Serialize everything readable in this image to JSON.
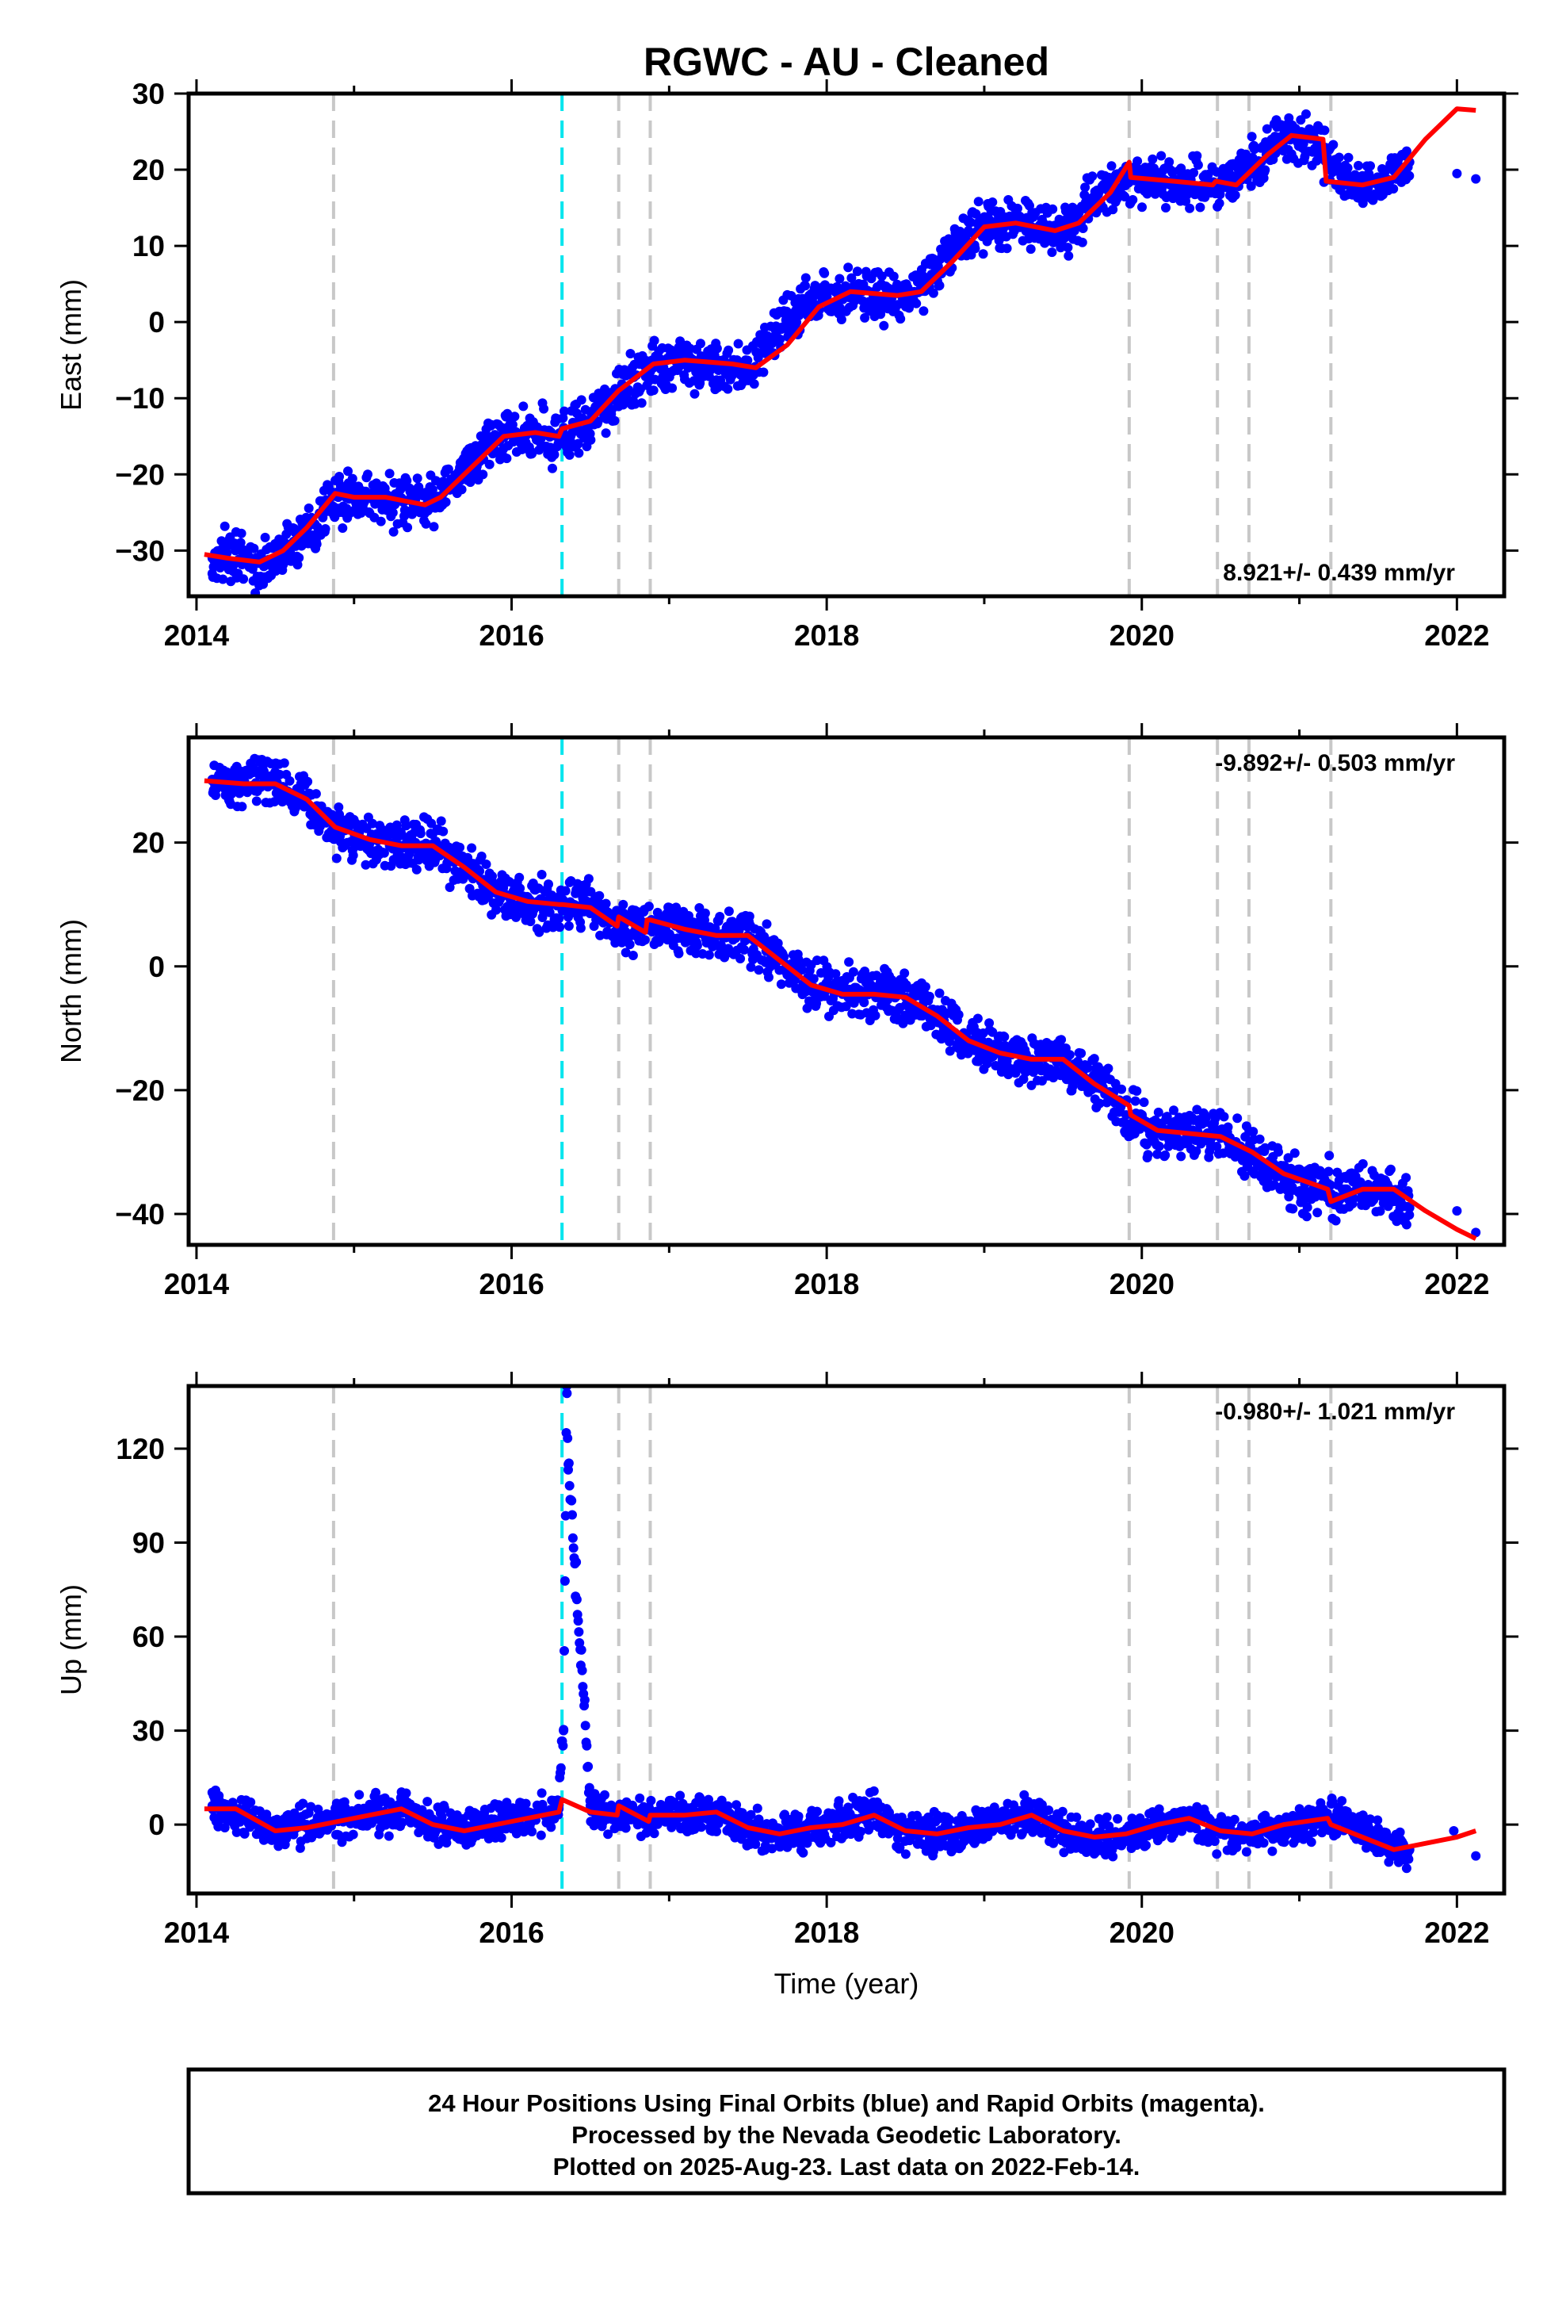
{
  "page": {
    "title": "RGWC  - AU - Cleaned",
    "xlabel": "Time (year)"
  },
  "footer": {
    "line1": "24 Hour Positions Using Final Orbits (blue) and Rapid Orbits (magenta).",
    "line2": "Processed by the Nevada Geodetic Laboratory.",
    "line3": "Plotted on 2025-Aug-23. Last data on 2022-Feb-14."
  },
  "colors": {
    "final_orbits": "#0000ff",
    "model": "#ff0000",
    "antenna_change": "#00e5ee",
    "equipment_change": "#c8c8c8"
  },
  "chart_data": [
    {
      "type": "scatter",
      "component": "East",
      "ylabel": "East (mm)",
      "xlim": [
        2013.95,
        2022.3
      ],
      "ylim": [
        -36,
        30
      ],
      "xticks": [
        2014,
        2016,
        2018,
        2020,
        2022
      ],
      "yticks": [
        30,
        20,
        10,
        0,
        -10,
        -20,
        -30
      ],
      "rate_label": "8.921+/- 0.439 mm/yr",
      "rate_position": "bottom-right",
      "grid": false,
      "series": [
        {
          "role": "daily-positions",
          "x": [
            2014.1,
            2014.3,
            2014.5,
            2014.7,
            2014.9,
            2015.1,
            2015.3,
            2015.5,
            2015.7,
            2015.9,
            2016.1,
            2016.3,
            2016.5,
            2016.7,
            2016.9,
            2017.1,
            2017.3,
            2017.5,
            2017.7,
            2017.9,
            2018.1,
            2018.3,
            2018.5,
            2018.7,
            2018.9,
            2019.1,
            2019.3,
            2019.5,
            2019.7,
            2019.9,
            2020.1,
            2020.3,
            2020.5,
            2020.7,
            2020.9,
            2021.1,
            2021.3,
            2021.5,
            2021.7,
            2022.0,
            2022.12
          ],
          "y": [
            -31,
            -31.5,
            -31.5,
            -28,
            -23,
            -23,
            -23.5,
            -24,
            -19,
            -15,
            -14.5,
            -15,
            -13,
            -9,
            -6,
            -5,
            -5.5,
            -6,
            -1,
            3,
            4,
            3.5,
            3,
            7,
            12,
            13,
            12.5,
            12,
            16,
            19,
            18.5,
            18,
            18,
            21,
            24,
            24,
            18.5,
            18,
            21,
            19.5,
            18.8
          ]
        },
        {
          "role": "model",
          "x": [
            2014.05,
            2014.2,
            2014.4,
            2014.55,
            2014.7,
            2014.88,
            2015.0,
            2015.2,
            2015.45,
            2015.55,
            2015.75,
            2015.95,
            2016.15,
            2016.3,
            2016.32,
            2016.5,
            2016.68,
            2016.9,
            2017.1,
            2017.4,
            2017.55,
            2017.75,
            2017.95,
            2018.15,
            2018.45,
            2018.6,
            2018.8,
            2019.0,
            2019.2,
            2019.45,
            2019.6,
            2019.8,
            2019.92,
            2019.93,
            2020.2,
            2020.45,
            2020.47,
            2020.6,
            2020.65,
            2020.8,
            2020.95,
            2021.15,
            2021.17,
            2021.4,
            2021.6,
            2021.8,
            2022.0,
            2022.12
          ],
          "y": [
            -30.5,
            -31,
            -31.5,
            -30,
            -27,
            -22.5,
            -23,
            -23,
            -24,
            -23,
            -19,
            -15,
            -14.5,
            -15,
            -14,
            -13,
            -9,
            -5.5,
            -5,
            -5.5,
            -6,
            -3,
            2,
            4,
            3.5,
            4,
            8,
            12.5,
            13,
            12,
            13,
            17,
            21,
            19,
            18.5,
            18,
            18.5,
            18,
            19,
            22,
            24.5,
            24,
            18.5,
            18,
            19,
            24,
            28,
            27.8
          ]
        }
      ],
      "events": [
        {
          "x": 2014.87,
          "kind": "equipment"
        },
        {
          "x": 2016.32,
          "kind": "antenna"
        },
        {
          "x": 2016.68,
          "kind": "equipment"
        },
        {
          "x": 2016.88,
          "kind": "equipment"
        },
        {
          "x": 2019.92,
          "kind": "equipment"
        },
        {
          "x": 2020.48,
          "kind": "equipment"
        },
        {
          "x": 2020.68,
          "kind": "equipment"
        },
        {
          "x": 2021.2,
          "kind": "equipment"
        }
      ]
    },
    {
      "type": "scatter",
      "component": "North",
      "ylabel": "North (mm)",
      "xlim": [
        2013.95,
        2022.3
      ],
      "ylim": [
        -45,
        37
      ],
      "xticks": [
        2014,
        2016,
        2018,
        2020,
        2022
      ],
      "yticks": [
        20,
        0,
        -20,
        -40
      ],
      "rate_label": "-9.892+/- 0.503 mm/yr",
      "rate_position": "top-right",
      "grid": false,
      "series": [
        {
          "role": "daily-positions",
          "x": [
            2014.1,
            2014.3,
            2014.5,
            2014.7,
            2014.9,
            2015.1,
            2015.3,
            2015.5,
            2015.7,
            2015.9,
            2016.1,
            2016.3,
            2016.5,
            2016.7,
            2016.9,
            2017.1,
            2017.3,
            2017.5,
            2017.7,
            2017.9,
            2018.1,
            2018.3,
            2018.5,
            2018.7,
            2018.9,
            2019.1,
            2019.3,
            2019.5,
            2019.7,
            2019.9,
            2020.1,
            2020.3,
            2020.5,
            2020.7,
            2020.9,
            2021.1,
            2021.3,
            2021.5,
            2021.7,
            2022.0,
            2022.12
          ],
          "y": [
            30,
            29.5,
            29.5,
            27,
            22,
            20,
            19.5,
            19.5,
            16,
            12,
            10.5,
            10,
            9.5,
            6.5,
            7,
            6,
            5,
            5,
            1,
            -3,
            -4.5,
            -4.5,
            -5,
            -8,
            -12,
            -14,
            -15,
            -15,
            -19,
            -24,
            -27,
            -27,
            -27.5,
            -30,
            -34,
            -36,
            -36,
            -36,
            -39,
            -39.5,
            -43
          ]
        },
        {
          "role": "model",
          "x": [
            2014.05,
            2014.3,
            2014.5,
            2014.7,
            2014.88,
            2015.1,
            2015.3,
            2015.5,
            2015.7,
            2015.9,
            2016.1,
            2016.3,
            2016.32,
            2016.5,
            2016.67,
            2016.68,
            2016.85,
            2016.86,
            2016.88,
            2017.1,
            2017.3,
            2017.5,
            2017.7,
            2017.9,
            2018.1,
            2018.3,
            2018.5,
            2018.7,
            2018.9,
            2019.1,
            2019.3,
            2019.5,
            2019.7,
            2019.92,
            2019.93,
            2020.1,
            2020.3,
            2020.5,
            2020.7,
            2020.9,
            2021.18,
            2021.2,
            2021.4,
            2021.6,
            2021.8,
            2022.0,
            2022.12
          ],
          "y": [
            30,
            29.5,
            29.5,
            27,
            22.5,
            20.5,
            19.5,
            19.5,
            16,
            12,
            10.5,
            10,
            10,
            9.5,
            6.5,
            8,
            5.5,
            7.5,
            7.5,
            6,
            5,
            5,
            1,
            -3,
            -4.5,
            -4.5,
            -5,
            -8,
            -12,
            -14,
            -15,
            -15,
            -19,
            -22.5,
            -24,
            -26.5,
            -27,
            -27.5,
            -30,
            -33.5,
            -36,
            -38,
            -36,
            -36,
            -39.5,
            -42.5,
            -44
          ]
        }
      ],
      "events": [
        {
          "x": 2014.87,
          "kind": "equipment"
        },
        {
          "x": 2016.32,
          "kind": "antenna"
        },
        {
          "x": 2016.68,
          "kind": "equipment"
        },
        {
          "x": 2016.88,
          "kind": "equipment"
        },
        {
          "x": 2019.92,
          "kind": "equipment"
        },
        {
          "x": 2020.48,
          "kind": "equipment"
        },
        {
          "x": 2020.68,
          "kind": "equipment"
        },
        {
          "x": 2021.2,
          "kind": "equipment"
        }
      ]
    },
    {
      "type": "scatter",
      "component": "Up",
      "ylabel": "Up (mm)",
      "xlim": [
        2013.95,
        2022.3
      ],
      "ylim": [
        -22,
        140
      ],
      "xticks": [
        2014,
        2016,
        2018,
        2020,
        2022
      ],
      "yticks": [
        120,
        90,
        60,
        30,
        0
      ],
      "rate_label": "-0.980+/- 1.021 mm/yr",
      "rate_position": "top-right",
      "grid": false,
      "series": [
        {
          "role": "daily-positions",
          "x": [
            2014.1,
            2014.3,
            2014.5,
            2014.7,
            2014.9,
            2015.1,
            2015.3,
            2015.5,
            2015.7,
            2015.9,
            2016.1,
            2016.3,
            2016.33,
            2016.35,
            2016.36,
            2016.5,
            2016.7,
            2016.9,
            2017.1,
            2017.3,
            2017.5,
            2017.7,
            2017.9,
            2018.1,
            2018.3,
            2018.5,
            2018.7,
            2018.9,
            2019.1,
            2019.3,
            2019.5,
            2019.7,
            2019.9,
            2020.1,
            2020.3,
            2020.5,
            2020.7,
            2020.9,
            2021.1,
            2021.3,
            2021.5,
            2021.7,
            2021.98,
            2022.12
          ],
          "y": [
            6,
            2,
            -2,
            0,
            1,
            3,
            5,
            0,
            -2,
            1,
            2,
            5,
            30,
            140,
            115,
            6,
            3,
            2,
            3,
            4,
            -1,
            -3,
            -1,
            1,
            3,
            -2,
            -3,
            -1,
            1,
            3,
            -2,
            -6,
            -4,
            0,
            2,
            -2,
            -3,
            -1,
            1,
            2,
            -6,
            -8,
            -2,
            -10
          ]
        },
        {
          "role": "model",
          "x": [
            2014.05,
            2014.25,
            2014.5,
            2014.7,
            2014.9,
            2015.1,
            2015.3,
            2015.5,
            2015.7,
            2015.9,
            2016.1,
            2016.3,
            2016.32,
            2016.5,
            2016.67,
            2016.68,
            2016.87,
            2016.88,
            2017.1,
            2017.3,
            2017.5,
            2017.7,
            2017.9,
            2018.1,
            2018.3,
            2018.5,
            2018.7,
            2018.9,
            2019.1,
            2019.3,
            2019.5,
            2019.7,
            2019.9,
            2020.1,
            2020.3,
            2020.5,
            2020.7,
            2020.9,
            2021.18,
            2021.2,
            2021.4,
            2021.6,
            2021.8,
            2022.0,
            2022.12
          ],
          "y": [
            5,
            5,
            -2,
            -1,
            1,
            3,
            5,
            0,
            -2,
            0,
            2,
            4,
            8,
            4,
            3,
            6,
            1,
            3,
            3,
            4,
            -1,
            -3,
            -1,
            0,
            3,
            -2,
            -3,
            -1,
            0,
            3,
            -2,
            -4,
            -3,
            0,
            2,
            -2,
            -3,
            0,
            2,
            0,
            -4,
            -8,
            -6,
            -4,
            -2
          ]
        }
      ],
      "events": [
        {
          "x": 2014.87,
          "kind": "equipment"
        },
        {
          "x": 2016.32,
          "kind": "antenna"
        },
        {
          "x": 2016.68,
          "kind": "equipment"
        },
        {
          "x": 2016.88,
          "kind": "equipment"
        },
        {
          "x": 2019.92,
          "kind": "equipment"
        },
        {
          "x": 2020.48,
          "kind": "equipment"
        },
        {
          "x": 2020.68,
          "kind": "equipment"
        },
        {
          "x": 2021.2,
          "kind": "equipment"
        }
      ]
    }
  ]
}
